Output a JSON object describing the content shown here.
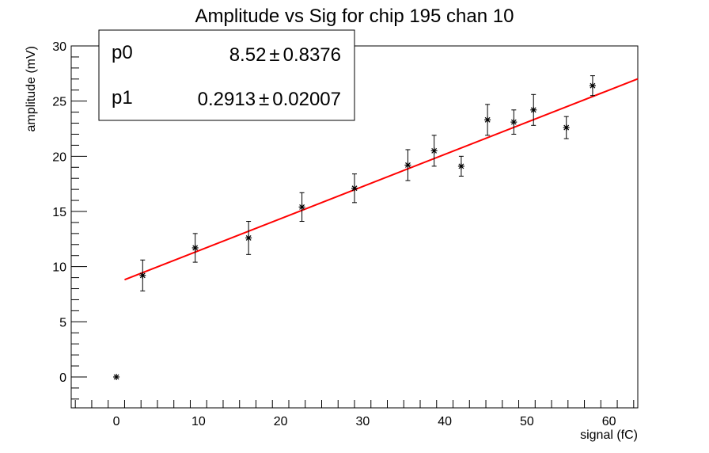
{
  "chart_data": {
    "type": "scatter",
    "title": "Amplitude vs Sig for chip 195 chan 10",
    "xlabel": "signal (fC)",
    "ylabel": "amplitude (mV)",
    "xlim": [
      -5.5,
      63.5
    ],
    "ylim": [
      -2.8,
      30
    ],
    "x_ticks": [
      0,
      10,
      20,
      30,
      40,
      50,
      60
    ],
    "y_ticks": [
      0,
      5,
      10,
      15,
      20,
      25,
      30
    ],
    "x_tick_labels": [
      "0",
      "10",
      "20",
      "30",
      "40",
      "50",
      "60"
    ],
    "y_tick_labels": [
      "0",
      "5",
      "10",
      "15",
      "20",
      "25",
      "30"
    ],
    "grid": false,
    "series": [
      {
        "marker": "asterisk",
        "color": "#000000",
        "points": [
          {
            "x": 0.0,
            "y": 0.0,
            "err": 0.0
          },
          {
            "x": 3.2,
            "y": 9.2,
            "err": 1.4
          },
          {
            "x": 9.6,
            "y": 11.7,
            "err": 1.3
          },
          {
            "x": 16.1,
            "y": 12.6,
            "err": 1.5
          },
          {
            "x": 22.6,
            "y": 15.4,
            "err": 1.3
          },
          {
            "x": 29.0,
            "y": 17.1,
            "err": 1.3
          },
          {
            "x": 35.5,
            "y": 19.2,
            "err": 1.4
          },
          {
            "x": 38.7,
            "y": 20.5,
            "err": 1.4
          },
          {
            "x": 42.0,
            "y": 19.1,
            "err": 0.9
          },
          {
            "x": 45.2,
            "y": 23.3,
            "err": 1.4
          },
          {
            "x": 48.4,
            "y": 23.1,
            "err": 1.1
          },
          {
            "x": 50.8,
            "y": 24.2,
            "err": 1.4
          },
          {
            "x": 54.8,
            "y": 22.6,
            "err": 1.0
          },
          {
            "x": 58.0,
            "y": 26.4,
            "err": 0.9
          }
        ]
      }
    ],
    "fit": {
      "color": "#ff0000",
      "p0": 8.52,
      "p1": 0.2913,
      "x_range": [
        1.0,
        63.5
      ]
    },
    "stats_box": {
      "placement": "top-left",
      "rows": [
        {
          "name": "p0",
          "value": "8.52",
          "pm": "±",
          "error": "0.8376"
        },
        {
          "name": "p1",
          "value": "0.2913",
          "pm": "±",
          "error": "0.02007"
        }
      ]
    }
  }
}
